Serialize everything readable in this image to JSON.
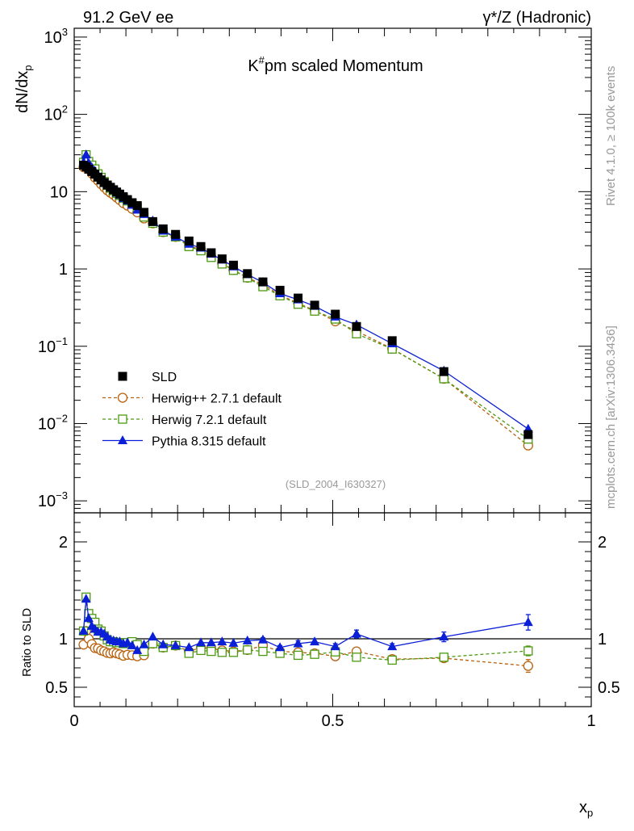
{
  "header": {
    "left": "91.2 GeV ee",
    "right": "γ*/Z (Hadronic)"
  },
  "side": {
    "rivet": "Rivet 4.1.0, ≥ 100k events",
    "mcplots": "mcplots.cern.ch [arXiv:1306.3436]"
  },
  "chart_data": {
    "type": "scatter",
    "title": "K#pm scaled Momentum",
    "title_main": "K",
    "title_sup": "#",
    "title_rest": "pm scaled Momentum",
    "analysis_id": "(SLD_2004_I630327)",
    "xlabel": "x",
    "xlabel_sub": "p",
    "ylabel": "dN/dx",
    "ylabel_sub": "p",
    "ratio_ylabel": "Ratio to SLD",
    "xlim": [
      0,
      1
    ],
    "ylim": [
      0.0007,
      1300
    ],
    "yscale": "log",
    "ratio_ylim": [
      0.3,
      2.3
    ],
    "x_ticks": [
      {
        "v": 0,
        "label": "0"
      },
      {
        "v": 0.5,
        "label": "0.5"
      },
      {
        "v": 1,
        "label": "1"
      }
    ],
    "y_ticks": [
      {
        "v": 0.001,
        "m": "10",
        "e": "−3"
      },
      {
        "v": 0.01,
        "m": "10",
        "e": "−2"
      },
      {
        "v": 0.1,
        "m": "10",
        "e": "−1"
      },
      {
        "v": 1,
        "m": "1",
        "e": ""
      },
      {
        "v": 10,
        "m": "10",
        "e": ""
      },
      {
        "v": 100,
        "m": "10",
        "e": "2"
      },
      {
        "v": 1000,
        "m": "10",
        "e": "3"
      }
    ],
    "ratio_ticks": [
      {
        "v": 0.5,
        "label": "0.5"
      },
      {
        "v": 1,
        "label": "1"
      },
      {
        "v": 2,
        "label": "2"
      }
    ],
    "x": [
      0.018,
      0.023,
      0.028,
      0.034,
      0.04,
      0.046,
      0.052,
      0.058,
      0.064,
      0.07,
      0.076,
      0.082,
      0.088,
      0.095,
      0.103,
      0.112,
      0.122,
      0.135,
      0.152,
      0.172,
      0.196,
      0.222,
      0.245,
      0.265,
      0.286,
      0.308,
      0.335,
      0.365,
      0.398,
      0.433,
      0.465,
      0.505,
      0.546,
      0.615,
      0.715,
      0.878
    ],
    "series": [
      {
        "name": "SLD",
        "color": "#000000",
        "marker": "square-filled",
        "values": [
          22,
          21,
          19.5,
          18.2,
          16.8,
          15.4,
          14.2,
          13.1,
          12.2,
          11.4,
          10.6,
          9.9,
          9.3,
          8.6,
          7.9,
          7.2,
          6.6,
          5.4,
          4.1,
          3.3,
          2.8,
          2.3,
          1.95,
          1.62,
          1.35,
          1.12,
          0.87,
          0.68,
          0.53,
          0.42,
          0.34,
          0.26,
          0.18,
          0.118,
          0.047,
          0.0072
        ]
      },
      {
        "name": "Herwig++ 2.7.1 default",
        "color": "#b8620e",
        "marker": "circle-open",
        "dash": true,
        "values": [
          20.7,
          22.7,
          19.5,
          17.2,
          15.2,
          13.9,
          12.5,
          11.4,
          10.4,
          9.7,
          9.1,
          8.4,
          7.8,
          7.1,
          6.6,
          6.0,
          5.4,
          4.5,
          3.9,
          3.0,
          2.6,
          2.0,
          1.77,
          1.46,
          1.19,
          0.97,
          0.77,
          0.63,
          0.46,
          0.36,
          0.29,
          0.21,
          0.157,
          0.093,
          0.038,
          0.0052
        ]
      },
      {
        "name": "Herwig 7.2.1 default",
        "color": "#4c9a12",
        "marker": "square-open",
        "dash": true,
        "values": [
          24,
          30,
          24.5,
          22,
          19.7,
          17,
          15.3,
          13.5,
          12.1,
          11.1,
          10.3,
          9.5,
          8.9,
          8.2,
          7.6,
          7.0,
          6.2,
          4.7,
          3.9,
          3.0,
          2.6,
          1.95,
          1.72,
          1.41,
          1.16,
          0.96,
          0.77,
          0.59,
          0.45,
          0.35,
          0.285,
          0.225,
          0.145,
          0.092,
          0.038,
          0.0063
        ]
      },
      {
        "name": "Pythia 8.315 default",
        "color": "#0a1fd6",
        "marker": "triangle-filled",
        "values": [
          24,
          30,
          23.5,
          20.6,
          18.5,
          16.5,
          15.2,
          13.8,
          12.4,
          11.3,
          10.4,
          9.6,
          9.0,
          8.2,
          7.6,
          6.7,
          5.8,
          5.1,
          4.2,
          3.1,
          2.6,
          2.1,
          1.87,
          1.56,
          1.31,
          1.07,
          0.85,
          0.67,
          0.48,
          0.4,
          0.33,
          0.24,
          0.19,
          0.108,
          0.048,
          0.0085
        ]
      }
    ],
    "ratio_series": [
      {
        "name": "Herwig++ 2.7.1 default",
        "values": [
          0.94,
          1.08,
          1.0,
          0.945,
          0.905,
          0.9,
          0.88,
          0.87,
          0.855,
          0.85,
          0.86,
          0.85,
          0.84,
          0.825,
          0.835,
          0.83,
          0.82,
          0.83,
          0.95,
          0.91,
          0.93,
          0.87,
          0.91,
          0.9,
          0.88,
          0.87,
          0.885,
          0.93,
          0.87,
          0.86,
          0.85,
          0.82,
          0.87,
          0.79,
          0.8,
          0.72
        ],
        "errors": [
          0,
          0,
          0,
          0,
          0,
          0,
          0,
          0,
          0,
          0,
          0,
          0,
          0,
          0,
          0,
          0,
          0,
          0,
          0,
          0,
          0,
          0,
          0,
          0,
          0,
          0,
          0,
          0,
          0,
          0,
          0,
          0.015,
          0.03,
          0.015,
          0.03,
          0.065
        ]
      },
      {
        "name": "Herwig 7.2.1 default",
        "values": [
          1.08,
          1.43,
          1.26,
          1.21,
          1.17,
          1.1,
          1.08,
          1.03,
          0.99,
          0.97,
          0.97,
          0.96,
          0.96,
          0.95,
          0.96,
          0.97,
          0.94,
          0.87,
          0.95,
          0.91,
          0.93,
          0.85,
          0.88,
          0.87,
          0.86,
          0.86,
          0.885,
          0.87,
          0.85,
          0.83,
          0.84,
          0.865,
          0.81,
          0.78,
          0.81,
          0.875
        ],
        "errors": [
          0,
          0,
          0,
          0,
          0,
          0,
          0,
          0,
          0,
          0,
          0,
          0,
          0,
          0,
          0,
          0,
          0,
          0,
          0,
          0,
          0,
          0,
          0,
          0,
          0,
          0,
          0,
          0,
          0,
          0,
          0,
          0.015,
          0.02,
          0.015,
          0.03,
          0.05
        ]
      },
      {
        "name": "Pythia 8.315 default",
        "values": [
          1.08,
          1.41,
          1.21,
          1.13,
          1.1,
          1.07,
          1.07,
          1.05,
          1.02,
          0.99,
          0.98,
          0.97,
          0.97,
          0.95,
          0.96,
          0.93,
          0.88,
          0.94,
          1.02,
          0.94,
          0.93,
          0.91,
          0.96,
          0.96,
          0.97,
          0.955,
          0.98,
          0.99,
          0.91,
          0.95,
          0.97,
          0.92,
          1.05,
          0.92,
          1.02,
          1.17
        ],
        "errors": [
          0,
          0,
          0,
          0,
          0,
          0,
          0,
          0,
          0,
          0,
          0,
          0,
          0,
          0,
          0,
          0,
          0,
          0,
          0,
          0,
          0,
          0,
          0,
          0,
          0,
          0,
          0.02,
          0.02,
          0.02,
          0.03,
          0.03,
          0.03,
          0.04,
          0.03,
          0.05,
          0.08
        ]
      }
    ],
    "legend_position": "bottom-left"
  }
}
